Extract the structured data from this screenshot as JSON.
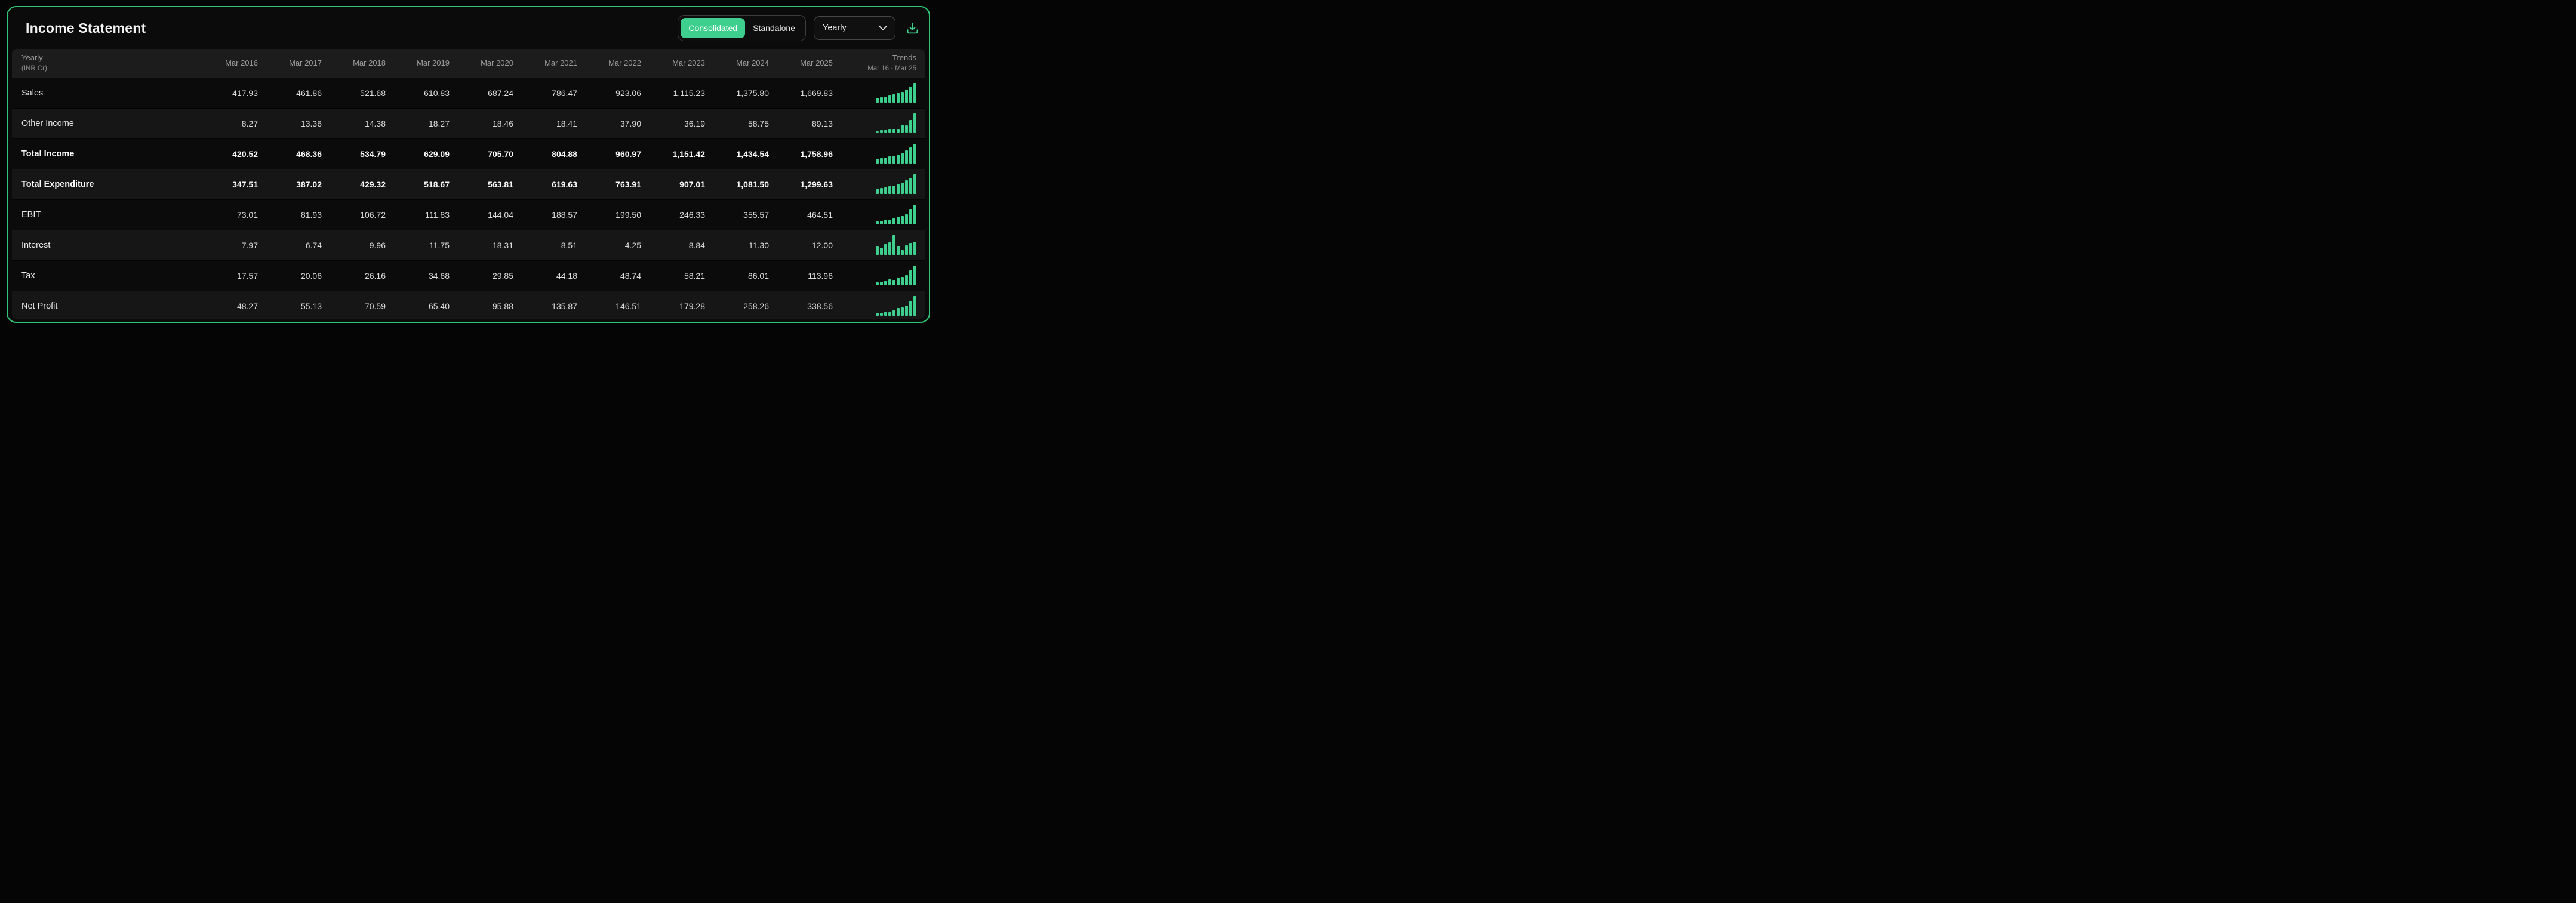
{
  "header": {
    "title": "Income Statement",
    "toggle": {
      "options": [
        "Consolidated",
        "Standalone"
      ],
      "active": "Consolidated"
    },
    "period_dropdown": {
      "value": "Yearly"
    }
  },
  "colors": {
    "accent": "#3ECF8E",
    "card_border": "#2FC574",
    "row_alt": "#161616",
    "header_strip": "#1C1C1C"
  },
  "table": {
    "first_col_header": {
      "line1": "Yearly",
      "line2": "(INR Cr)"
    },
    "columns": [
      "Mar 2016",
      "Mar 2017",
      "Mar 2018",
      "Mar 2019",
      "Mar 2020",
      "Mar 2021",
      "Mar 2022",
      "Mar 2023",
      "Mar 2024",
      "Mar 2025"
    ],
    "trends_header": {
      "line1": "Trends",
      "line2": "Mar 16 - Mar 25"
    },
    "rows": [
      {
        "label": "Sales",
        "bold": false,
        "values": [
          "417.93",
          "461.86",
          "521.68",
          "610.83",
          "687.24",
          "786.47",
          "923.06",
          "1,115.23",
          "1,375.80",
          "1,669.83"
        ]
      },
      {
        "label": "Other Income",
        "bold": false,
        "values": [
          "8.27",
          "13.36",
          "14.38",
          "18.27",
          "18.46",
          "18.41",
          "37.90",
          "36.19",
          "58.75",
          "89.13"
        ]
      },
      {
        "label": "Total Income",
        "bold": true,
        "values": [
          "420.52",
          "468.36",
          "534.79",
          "629.09",
          "705.70",
          "804.88",
          "960.97",
          "1,151.42",
          "1,434.54",
          "1,758.96"
        ]
      },
      {
        "label": "Total Expenditure",
        "bold": true,
        "values": [
          "347.51",
          "387.02",
          "429.32",
          "518.67",
          "563.81",
          "619.63",
          "763.91",
          "907.01",
          "1,081.50",
          "1,299.63"
        ]
      },
      {
        "label": "EBIT",
        "bold": false,
        "values": [
          "73.01",
          "81.93",
          "106.72",
          "111.83",
          "144.04",
          "188.57",
          "199.50",
          "246.33",
          "355.57",
          "464.51"
        ]
      },
      {
        "label": "Interest",
        "bold": false,
        "values": [
          "7.97",
          "6.74",
          "9.96",
          "11.75",
          "18.31",
          "8.51",
          "4.25",
          "8.84",
          "11.30",
          "12.00"
        ]
      },
      {
        "label": "Tax",
        "bold": false,
        "values": [
          "17.57",
          "20.06",
          "26.16",
          "34.68",
          "29.85",
          "44.18",
          "48.74",
          "58.21",
          "86.01",
          "113.96"
        ]
      },
      {
        "label": "Net Profit",
        "bold": false,
        "values": [
          "48.27",
          "55.13",
          "70.59",
          "65.40",
          "95.88",
          "135.87",
          "146.51",
          "179.28",
          "258.26",
          "338.56"
        ]
      }
    ]
  }
}
